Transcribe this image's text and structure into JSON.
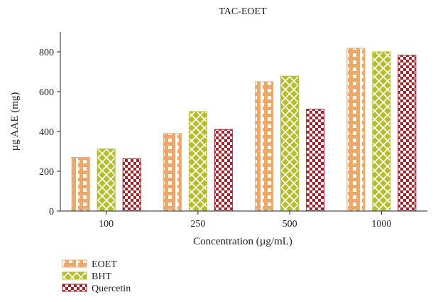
{
  "chart_data": {
    "type": "bar",
    "title": "TAC-EOET",
    "xlabel": "Concentration (µg/mL)",
    "ylabel": "µg AAE (mg)",
    "categories": [
      "100",
      "250",
      "500",
      "1000"
    ],
    "series": [
      {
        "name": "EOET",
        "values": [
          270,
          390,
          650,
          818
        ],
        "color": "#e8a870",
        "pattern": "stripes"
      },
      {
        "name": "BHT",
        "values": [
          312,
          500,
          678,
          800
        ],
        "color": "#b5bd2f",
        "pattern": "crosshatch"
      },
      {
        "name": "Quercetin",
        "values": [
          263,
          410,
          512,
          783
        ],
        "color": "#a3232e",
        "pattern": "checker"
      }
    ],
    "ylim": [
      0,
      900
    ],
    "yticks": [
      0,
      200,
      400,
      600,
      800
    ],
    "grid": false,
    "legend": "bottom-left"
  }
}
